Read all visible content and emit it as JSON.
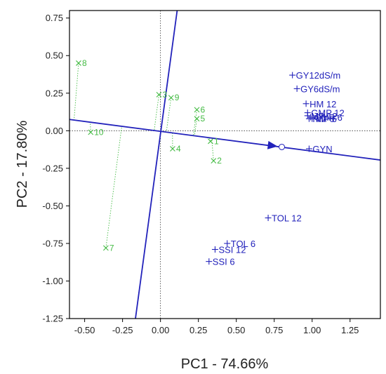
{
  "chart_data": {
    "type": "scatter",
    "subtype": "biplot",
    "title": "",
    "xlabel": "PC1 - 74.66%",
    "ylabel": "PC2 - 17.80%",
    "xlim": [
      -0.6,
      1.45
    ],
    "ylim": [
      -1.25,
      0.8
    ],
    "x_ticks": [
      "-0.50",
      "-0.25",
      "0.00",
      "0.25",
      "0.50",
      "0.75",
      "1.00",
      "1.25"
    ],
    "y_ticks": [
      "0.75",
      "0.50",
      "0.25",
      "0.00",
      "-0.25",
      "-0.50",
      "-0.75",
      "-1.00",
      "-1.25"
    ],
    "grid": false,
    "axis_lines": [
      {
        "name": "average-environment-axis",
        "x1": -0.6,
        "y1": 0.075,
        "x2": 1.45,
        "y2": -0.195
      },
      {
        "name": "perpendicular-axis",
        "x1": 0.11,
        "y1": 0.8,
        "x2": -0.165,
        "y2": -1.25
      }
    ],
    "arrow_point": {
      "x": 0.8,
      "y": -0.108
    },
    "genotypes": {
      "color": "#44BB44",
      "points": [
        {
          "label": "1",
          "x": 0.33,
          "y": -0.07,
          "proj": {
            "x": 0.321,
            "y": -0.042
          }
        },
        {
          "label": "2",
          "x": 0.35,
          "y": -0.2,
          "proj": {
            "x": 0.337,
            "y": -0.044
          }
        },
        {
          "label": "3",
          "x": -0.01,
          "y": 0.24,
          "proj": {
            "x": -0.041,
            "y": 0.006
          }
        },
        {
          "label": "4",
          "x": 0.08,
          "y": -0.12,
          "proj": {
            "x": 0.079,
            "y": -0.01
          }
        },
        {
          "label": "5",
          "x": 0.24,
          "y": 0.08,
          "proj": {
            "x": 0.225,
            "y": -0.029
          }
        },
        {
          "label": "6",
          "x": 0.24,
          "y": 0.14,
          "proj": {
            "x": 0.217,
            "y": -0.028
          }
        },
        {
          "label": "7",
          "x": -0.36,
          "y": -0.78,
          "proj": {
            "x": -0.255,
            "y": 0.032
          }
        },
        {
          "label": "8",
          "x": -0.54,
          "y": 0.45,
          "proj": {
            "x": -0.57,
            "y": 0.071
          }
        },
        {
          "label": "9",
          "x": 0.07,
          "y": 0.22,
          "proj": {
            "x": 0.039,
            "y": -0.005
          }
        },
        {
          "label": "10",
          "x": -0.46,
          "y": -0.01,
          "proj": {
            "x": -0.463,
            "y": 0.057
          }
        }
      ]
    },
    "traits": {
      "color": "#2222BB",
      "points": [
        {
          "label": "GY12dS/m",
          "x": 0.87,
          "y": 0.37
        },
        {
          "label": "GY6dS/m",
          "x": 0.9,
          "y": 0.28
        },
        {
          "label": "HM 12",
          "x": 0.96,
          "y": 0.18
        },
        {
          "label": "GMP 12",
          "x": 0.97,
          "y": 0.12
        },
        {
          "label": "MP 12",
          "x": 0.97,
          "y": 0.1
        },
        {
          "label": "HM 6",
          "x": 0.98,
          "y": 0.08
        },
        {
          "label": "GMP 6",
          "x": 0.99,
          "y": 0.09
        },
        {
          "label": "MP 6",
          "x": 1.0,
          "y": 0.08
        },
        {
          "label": "GYN",
          "x": 0.98,
          "y": -0.12
        },
        {
          "label": "TOL 12",
          "x": 0.71,
          "y": -0.58
        },
        {
          "label": "TOL 6",
          "x": 0.44,
          "y": -0.75
        },
        {
          "label": "SSI 12",
          "x": 0.36,
          "y": -0.79
        },
        {
          "label": "SSI 6",
          "x": 0.32,
          "y": -0.87
        }
      ]
    }
  }
}
